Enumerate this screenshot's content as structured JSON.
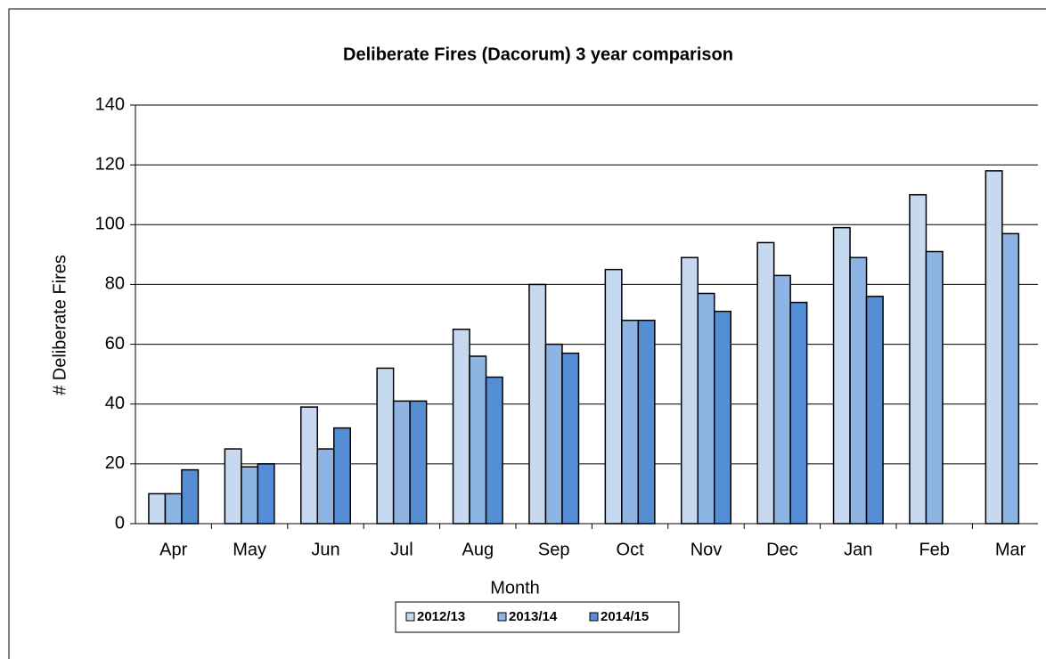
{
  "chart_data": {
    "type": "bar",
    "title": "Deliberate Fires (Dacorum) 3 year comparison",
    "x_label": "Month",
    "y_label": "# Deliberate Fires",
    "categories": [
      "Apr",
      "May",
      "Jun",
      "Jul",
      "Aug",
      "Sep",
      "Oct",
      "Nov",
      "Dec",
      "Jan",
      "Feb",
      "Mar"
    ],
    "series": [
      {
        "name": "2012/13",
        "color": "#c6d9f1",
        "values": [
          10,
          25,
          39,
          52,
          65,
          80,
          85,
          89,
          94,
          99,
          110,
          118
        ]
      },
      {
        "name": "2013/14",
        "color": "#8db4e2",
        "values": [
          10,
          19,
          25,
          41,
          56,
          60,
          68,
          77,
          83,
          89,
          91,
          97
        ]
      },
      {
        "name": "2014/15",
        "color": "#558ed5",
        "values": [
          18,
          20,
          32,
          41,
          49,
          57,
          68,
          71,
          74,
          76,
          null,
          null
        ]
      }
    ],
    "ylim": [
      0,
      140
    ],
    "yticks": [
      0,
      20,
      40,
      60,
      80,
      100,
      120,
      140
    ],
    "grid": true,
    "legend": "bottom"
  }
}
